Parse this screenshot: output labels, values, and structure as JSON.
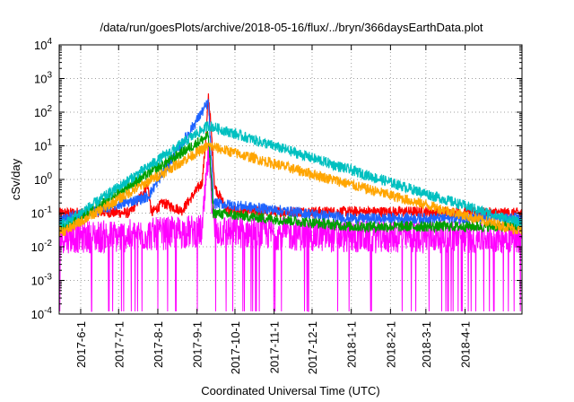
{
  "chart_data": {
    "type": "line",
    "title": "/data/run/goesPlots/archive/2018-05-16/flux/../bryn/366daysEarthData.plot",
    "xlabel": "Coordinated Universal Time (UTC)",
    "ylabel": "cSv/day",
    "y_scale": "log",
    "ylim": [
      0.0001,
      10000
    ],
    "xlim": [
      "2017-05-15",
      "2018-05-16"
    ],
    "grid": true,
    "legend": "none",
    "y_ticks": [
      {
        "value": 0.0001,
        "base": "10",
        "exp": "-4"
      },
      {
        "value": 0.001,
        "base": "10",
        "exp": "-3"
      },
      {
        "value": 0.01,
        "base": "10",
        "exp": "-2"
      },
      {
        "value": 0.1,
        "base": "10",
        "exp": "-1"
      },
      {
        "value": 1,
        "base": "10",
        "exp": "0"
      },
      {
        "value": 10,
        "base": "10",
        "exp": "1"
      },
      {
        "value": 100,
        "base": "10",
        "exp": "2"
      },
      {
        "value": 1000,
        "base": "10",
        "exp": "3"
      },
      {
        "value": 10000,
        "base": "10",
        "exp": "4"
      }
    ],
    "x_ticks": [
      "2017-6-1",
      "2017-7-1",
      "2017-8-1",
      "2017-9-1",
      "2017-10-1",
      "2017-11-1",
      "2017-12-1",
      "2018-1-1",
      "2018-2-1",
      "2018-3-1",
      "2018-4-1"
    ],
    "series": [
      {
        "color": "#ff0000",
        "points": [
          [
            "2017-05-20",
            0.1
          ],
          [
            "2017-06-10",
            0.11
          ],
          [
            "2017-07-10",
            0.1
          ],
          [
            "2017-07-24",
            0.7
          ],
          [
            "2017-07-27",
            0.1
          ],
          [
            "2017-08-05",
            0.2
          ],
          [
            "2017-08-20",
            0.12
          ],
          [
            "2017-09-05",
            0.8
          ],
          [
            "2017-09-08",
            15
          ],
          [
            "2017-09-10",
            300
          ],
          [
            "2017-09-12",
            40
          ],
          [
            "2017-09-15",
            0.6
          ],
          [
            "2017-09-25",
            0.12
          ],
          [
            "2017-11-01",
            0.11
          ],
          [
            "2018-01-01",
            0.11
          ],
          [
            "2018-03-01",
            0.11
          ],
          [
            "2018-05-15",
            0.1
          ]
        ]
      },
      {
        "color": "#ff00ff",
        "points": [
          [
            "2017-05-20",
            0.02
          ],
          [
            "2017-07-01",
            0.02
          ],
          [
            "2017-09-05",
            0.03
          ],
          [
            "2017-09-10",
            5
          ],
          [
            "2017-09-15",
            0.03
          ],
          [
            "2018-01-01",
            0.02
          ],
          [
            "2018-05-15",
            0.02
          ]
        ]
      },
      {
        "color": "#1e64ff",
        "points": [
          [
            "2017-05-20",
            0.07
          ],
          [
            "2017-07-24",
            0.3
          ],
          [
            "2017-09-10",
            200
          ],
          [
            "2017-09-14",
            0.2
          ],
          [
            "2018-01-01",
            0.07
          ],
          [
            "2018-05-15",
            0.07
          ]
        ]
      },
      {
        "color": "#00a000",
        "points": [
          [
            "2017-05-20",
            0.04
          ],
          [
            "2017-09-10",
            20
          ],
          [
            "2017-09-14",
            0.1
          ],
          [
            "2018-01-01",
            0.04
          ],
          [
            "2018-05-15",
            0.04
          ]
        ]
      },
      {
        "color": "#00c0c0",
        "points": [
          [
            "2017-05-20",
            0.05
          ],
          [
            "2017-09-10",
            40
          ],
          [
            "2018-05-15",
            0.05
          ]
        ]
      },
      {
        "color": "#ffa500",
        "points": [
          [
            "2017-05-20",
            0.03
          ],
          [
            "2017-09-10",
            10
          ],
          [
            "2018-05-15",
            0.03
          ]
        ]
      }
    ]
  }
}
